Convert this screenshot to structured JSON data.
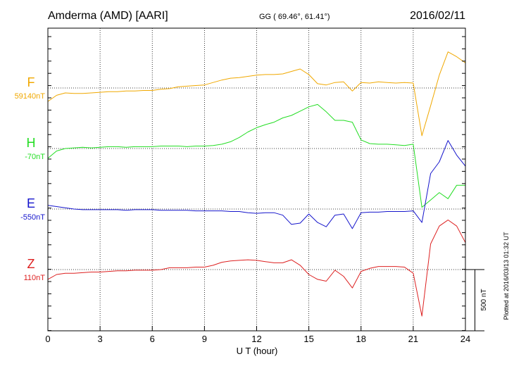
{
  "header": {
    "station": "Amderma (AMD)  [AARI]",
    "coords": "GG ( 69.46°,  61.41°)",
    "date": "2016/02/11"
  },
  "footer": {
    "plotted": "Plotted at 2016/03/13 01:32 UT"
  },
  "chart_data": {
    "type": "line",
    "title": "Amderma (AMD)  [AARI]",
    "xlabel": "U T (hour)",
    "ylabel": "",
    "xlim": [
      0,
      24
    ],
    "x_ticks": [
      "0",
      "3",
      "6",
      "9",
      "12",
      "15",
      "18",
      "21",
      "24"
    ],
    "grid": true,
    "scale_bar": {
      "label": "500 nT",
      "value_nT": 500
    },
    "x": [
      0,
      0.5,
      1,
      1.5,
      2,
      2.5,
      3,
      3.5,
      4,
      4.5,
      5,
      5.5,
      6,
      6.5,
      7,
      7.5,
      8,
      8.5,
      9,
      9.5,
      10,
      10.5,
      11,
      11.5,
      12,
      12.5,
      13,
      13.5,
      14,
      14.5,
      15,
      15.5,
      16,
      16.5,
      17,
      17.5,
      18,
      18.5,
      19,
      19.5,
      20,
      20.5,
      21,
      21.5,
      22,
      22.5,
      23,
      23.5,
      24
    ],
    "series": [
      {
        "name": "F",
        "baseline_label": "59140nT",
        "color": "#f0a800",
        "values": [
          -110,
          -60,
          -40,
          -45,
          -45,
          -40,
          -35,
          -30,
          -30,
          -25,
          -25,
          -20,
          -20,
          -10,
          -5,
          10,
          15,
          20,
          25,
          45,
          65,
          80,
          85,
          95,
          105,
          110,
          110,
          115,
          135,
          155,
          110,
          35,
          25,
          45,
          50,
          -25,
          45,
          40,
          50,
          45,
          40,
          45,
          40,
          -390,
          -145,
          105,
          295,
          255,
          205
        ]
      },
      {
        "name": "H",
        "baseline_label": "-70nT",
        "color": "#22dd22",
        "values": [
          -80,
          -20,
          0,
          5,
          10,
          5,
          10,
          15,
          15,
          10,
          15,
          15,
          15,
          20,
          20,
          20,
          15,
          20,
          20,
          25,
          35,
          55,
          90,
          135,
          170,
          195,
          215,
          250,
          270,
          305,
          340,
          360,
          300,
          230,
          230,
          215,
          70,
          40,
          35,
          35,
          30,
          25,
          35,
          -480,
          -420,
          -360,
          -410,
          -300,
          -300
        ]
      },
      {
        "name": "E",
        "baseline_label": "-550nT",
        "color": "#1515cc",
        "values": [
          30,
          20,
          10,
          0,
          -5,
          -5,
          -5,
          -5,
          -5,
          -10,
          -5,
          -5,
          -5,
          -10,
          -10,
          -10,
          -10,
          -15,
          -15,
          -15,
          -15,
          -20,
          -20,
          -30,
          -35,
          -30,
          -30,
          -50,
          -125,
          -115,
          -40,
          -110,
          -145,
          -50,
          -40,
          -160,
          -30,
          -25,
          -25,
          -20,
          -20,
          -20,
          -15,
          -110,
          290,
          385,
          560,
          440,
          350
        ]
      },
      {
        "name": "Z",
        "baseline_label": "110nT",
        "color": "#dd2020",
        "values": [
          -80,
          -40,
          -30,
          -30,
          -25,
          -20,
          -20,
          -15,
          -10,
          -10,
          -5,
          -5,
          -5,
          0,
          15,
          15,
          15,
          20,
          20,
          35,
          60,
          70,
          75,
          80,
          75,
          65,
          55,
          55,
          80,
          35,
          -40,
          -80,
          -95,
          -5,
          -55,
          -150,
          -15,
          10,
          25,
          25,
          25,
          20,
          -30,
          -380,
          210,
          355,
          405,
          355,
          220
        ]
      }
    ]
  }
}
